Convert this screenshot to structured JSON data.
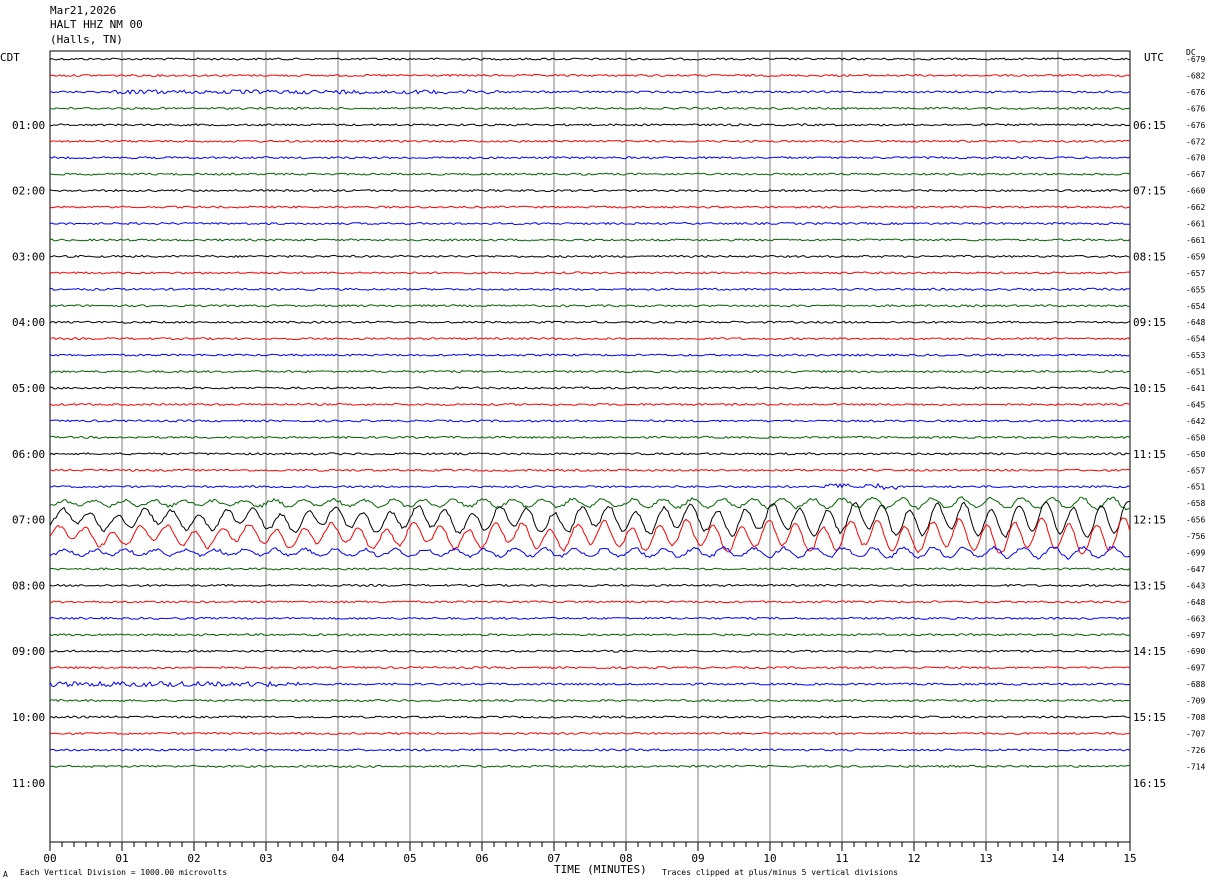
{
  "header": {
    "date": "Mar21,2026",
    "station": "HALT HHZ NM 00",
    "location": "(Halls, TN)"
  },
  "left_tz": "CDT",
  "right_tz": "UTC",
  "dc_label": "DC",
  "footer": {
    "scale_note": "Each Vertical Division = 1000.00 microvolts",
    "clip_note": "Traces clipped at plus/minus 5 vertical divisions",
    "corner_mark": "A"
  },
  "chart_data": {
    "type": "line",
    "title": "",
    "xlabel": "TIME (MINUTES)",
    "xlim": [
      0,
      15
    ],
    "x_ticks": [
      "00",
      "01",
      "02",
      "03",
      "04",
      "05",
      "06",
      "07",
      "08",
      "09",
      "10",
      "11",
      "12",
      "13",
      "14",
      "15"
    ],
    "trace_colors": [
      "#000000",
      "#ff0000",
      "#0000ff",
      "#006400"
    ],
    "left_time_labels": [
      "01:00",
      "02:00",
      "03:00",
      "04:00",
      "05:00",
      "06:00",
      "07:00",
      "08:00",
      "09:00",
      "10:00",
      "11:00"
    ],
    "right_time_labels": [
      "06:15",
      "07:15",
      "08:15",
      "09:15",
      "10:15",
      "11:15",
      "12:15",
      "13:15",
      "14:15",
      "15:15",
      "16:15"
    ],
    "dc_offsets": [
      "-679",
      "-682",
      "-676",
      "-676",
      "-676",
      "-672",
      "-670",
      "-667",
      "-660",
      "-662",
      "-661",
      "-661",
      "-659",
      "-657",
      "-655",
      "-654",
      "-648",
      "-654",
      "-653",
      "-651",
      "-641",
      "-645",
      "-642",
      "-650",
      "-650",
      "-657",
      "-651",
      "-658",
      "-656",
      "-756",
      "-699",
      "-647",
      "-643",
      "-648",
      "-663",
      "-697",
      "-690",
      "-697",
      "-688",
      "-709",
      "-708",
      "-707",
      "-726",
      "-714"
    ]
  }
}
